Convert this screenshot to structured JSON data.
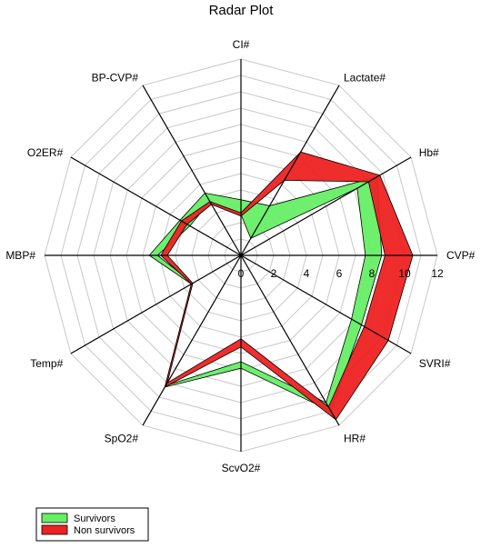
{
  "chart_data": {
    "type": "radar",
    "title": "Radar Plot",
    "axes": [
      "CI#",
      "Lactate#",
      "Hb#",
      "CVP#",
      "SVRI#",
      "HR#",
      "ScvO2#",
      "SpO2#",
      "Temp#",
      "MBP#",
      "O2ER#",
      "BP-CVP#"
    ],
    "radial_ticks": [
      "0",
      "2",
      "4",
      "6",
      "8",
      "10",
      "12"
    ],
    "rlim": [
      0,
      12
    ],
    "grid": true,
    "legend_position": "bottom-left",
    "series": [
      {
        "name": "Survivors",
        "color": "#66ee66",
        "lower": [
          2.5,
          1.2,
          8.2,
          7.6,
          7.8,
          10.4,
          6.5,
          9.2,
          3.4,
          5.1,
          3.6,
          3.8
        ],
        "upper": [
          3.4,
          3.5,
          9.6,
          8.6,
          8.5,
          11.0,
          6.9,
          9.3,
          3.5,
          5.6,
          4.3,
          4.4
        ]
      },
      {
        "name": "Non survivors",
        "color": "#ee2222",
        "lower": [
          2.4,
          5.3,
          9.0,
          8.8,
          8.7,
          10.7,
          5.1,
          9.0,
          3.4,
          4.5,
          3.8,
          3.6
        ],
        "upper": [
          2.6,
          7.3,
          9.8,
          10.5,
          10.4,
          11.6,
          5.6,
          9.3,
          3.5,
          4.9,
          4.2,
          3.8
        ]
      }
    ]
  }
}
